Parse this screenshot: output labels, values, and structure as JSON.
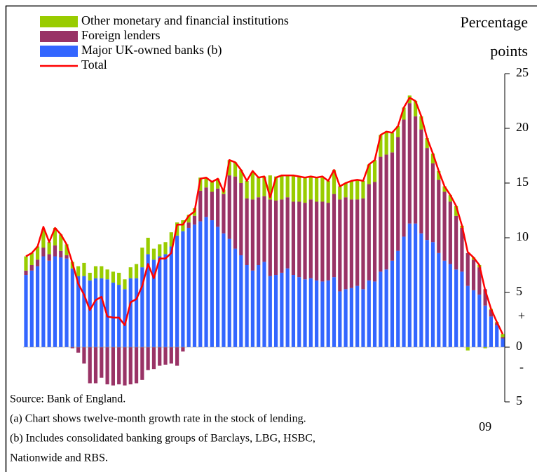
{
  "chart_data": {
    "type": "stacked-bar-line",
    "y_label_lines": [
      "Percentage",
      "points"
    ],
    "annotations": [
      "+",
      "-"
    ],
    "notes": [
      "Source:  Bank of England.",
      "(a)  Chart shows twelve-month growth rate in the stock of lending.",
      "(b)  Includes consolidated banking groups of Barclays, LBG, HSBC,",
      "Nationwide and RBS."
    ],
    "categories": [
      null,
      null,
      null,
      null,
      null,
      null,
      null,
      null,
      null,
      null,
      null,
      null,
      null,
      null,
      null,
      null,
      null,
      null,
      null,
      null,
      null,
      null,
      null,
      null,
      null,
      null,
      null,
      null,
      null,
      null,
      null,
      null,
      null,
      null,
      null,
      null,
      null,
      null,
      null,
      null,
      null,
      null,
      null,
      null,
      null,
      null,
      null,
      null,
      null,
      null,
      null,
      null,
      null,
      null,
      null,
      null,
      null,
      null,
      null,
      null,
      null,
      null,
      null,
      null,
      null,
      null,
      null,
      null,
      null,
      null,
      null,
      null,
      null,
      null,
      null,
      null,
      null,
      null,
      null,
      "09",
      null,
      null,
      null
    ],
    "ylim": [
      -5,
      25
    ],
    "yticks": [
      25,
      20,
      15,
      10,
      5,
      0,
      {
        "value": -5,
        "label": "5"
      }
    ],
    "series": [
      {
        "name": "Other monetary and financial institutions",
        "color": "#99cc00",
        "kind": "bar",
        "values": [
          1.3,
          1.1,
          1.2,
          1.7,
          1.1,
          1.6,
          1.5,
          1.0,
          0.6,
          0.9,
          1.2,
          0.7,
          1.1,
          1.1,
          0.9,
          1.0,
          1.1,
          0.9,
          1.0,
          1.3,
          1.8,
          1.5,
          1.0,
          1.1,
          1.1,
          1.3,
          1.2,
          1.0,
          0.7,
          0.7,
          1.2,
          0.9,
          0.9,
          0.9,
          0.4,
          1.4,
          1.3,
          1.2,
          1.6,
          2.5,
          1.8,
          1.8,
          2.2,
          2.2,
          2.2,
          2.0,
          2.4,
          2.3,
          2.3,
          2.1,
          2.2,
          2.2,
          2.0,
          2.2,
          1.2,
          1.3,
          1.7,
          1.8,
          1.6,
          1.8,
          2.0,
          2.0,
          2.1,
          1.8,
          1.0,
          1.1,
          0.7,
          1.4,
          1.2,
          0.9,
          0.9,
          0.8,
          0.5,
          0.6,
          0.9,
          0.2,
          -0.3,
          0.2,
          0.2,
          -0.1,
          0.1,
          0.1,
          0.3
        ]
      },
      {
        "name": "Foreign lenders",
        "color": "#993366",
        "kind": "bar",
        "values": [
          0.4,
          0.5,
          0.6,
          0.8,
          0.6,
          1.0,
          0.6,
          0.3,
          -0.1,
          -0.5,
          -1.5,
          -3.3,
          -3.3,
          -2.8,
          -3.4,
          -3.5,
          -3.4,
          -3.5,
          -3.4,
          -3.3,
          -3.0,
          -2.1,
          -2.0,
          -1.7,
          -1.6,
          -1.5,
          -1.7,
          -0.4,
          0.5,
          0.8,
          2.8,
          2.7,
          2.6,
          3.5,
          3.6,
          5.8,
          6.6,
          6.6,
          6.1,
          6.5,
          6.2,
          6.0,
          7.0,
          6.8,
          6.7,
          6.5,
          6.7,
          6.9,
          7.0,
          7.2,
          7.2,
          7.3,
          7.1,
          7.6,
          8.4,
          8.4,
          8.1,
          7.9,
          8.3,
          8.8,
          9.1,
          10.5,
          10.5,
          9.9,
          10.4,
          10.7,
          11.0,
          9.8,
          9.5,
          8.4,
          7.2,
          6.7,
          6.3,
          5.7,
          4.9,
          4.0,
          3.0,
          2.8,
          2.5,
          1.5,
          0.6,
          0.2,
          0.1
        ]
      },
      {
        "name": "Major UK-owned banks (b)",
        "color": "#3366ff",
        "kind": "bar",
        "values": [
          6.6,
          7.0,
          7.4,
          8.3,
          7.9,
          8.3,
          8.2,
          8.1,
          7.2,
          6.5,
          6.5,
          6.1,
          6.3,
          6.3,
          6.2,
          5.9,
          5.7,
          5.3,
          6.3,
          6.3,
          7.3,
          8.5,
          8.0,
          8.3,
          8.5,
          9.2,
          10.2,
          10.6,
          10.9,
          11.2,
          11.5,
          11.9,
          11.6,
          11.0,
          10.4,
          9.9,
          9.0,
          8.4,
          7.5,
          7.0,
          7.5,
          7.8,
          6.5,
          6.6,
          6.8,
          7.2,
          6.6,
          6.4,
          6.2,
          6.3,
          6.1,
          6.0,
          6.1,
          6.4,
          5.1,
          5.3,
          5.4,
          5.6,
          5.3,
          6.1,
          6.0,
          6.9,
          7.1,
          7.9,
          8.8,
          10.1,
          11.3,
          11.3,
          10.4,
          9.8,
          9.6,
          8.6,
          7.9,
          7.6,
          7.1,
          6.9,
          5.6,
          5.2,
          4.8,
          3.8,
          2.8,
          2.0,
          0.8
        ]
      },
      {
        "name": "Total",
        "color": "#ff0000",
        "kind": "line",
        "values": [
          8.3,
          8.6,
          9.2,
          11.0,
          9.6,
          10.9,
          10.3,
          9.4,
          7.7,
          5.8,
          4.8,
          3.4,
          4.3,
          4.6,
          2.8,
          2.7,
          2.7,
          2.0,
          4.1,
          4.4,
          5.6,
          7.6,
          6.3,
          8.1,
          8.1,
          8.6,
          11.2,
          11.2,
          12.0,
          12.4,
          15.4,
          15.5,
          15.1,
          15.4,
          14.2,
          17.1,
          16.9,
          16.2,
          15.2,
          16.1,
          15.5,
          15.6,
          13.7,
          15.5,
          15.7,
          15.7,
          15.7,
          15.6,
          15.5,
          15.6,
          15.5,
          15.6,
          15.2,
          16.2,
          14.7,
          15.0,
          15.2,
          15.3,
          15.2,
          16.7,
          17.1,
          19.4,
          19.7,
          19.6,
          20.2,
          21.9,
          22.8,
          22.5,
          21.1,
          19.1,
          17.7,
          16.1,
          14.7,
          13.9,
          12.9,
          11.1,
          8.7,
          8.2,
          7.5,
          5.2,
          3.5,
          2.3,
          1.2
        ]
      }
    ]
  }
}
